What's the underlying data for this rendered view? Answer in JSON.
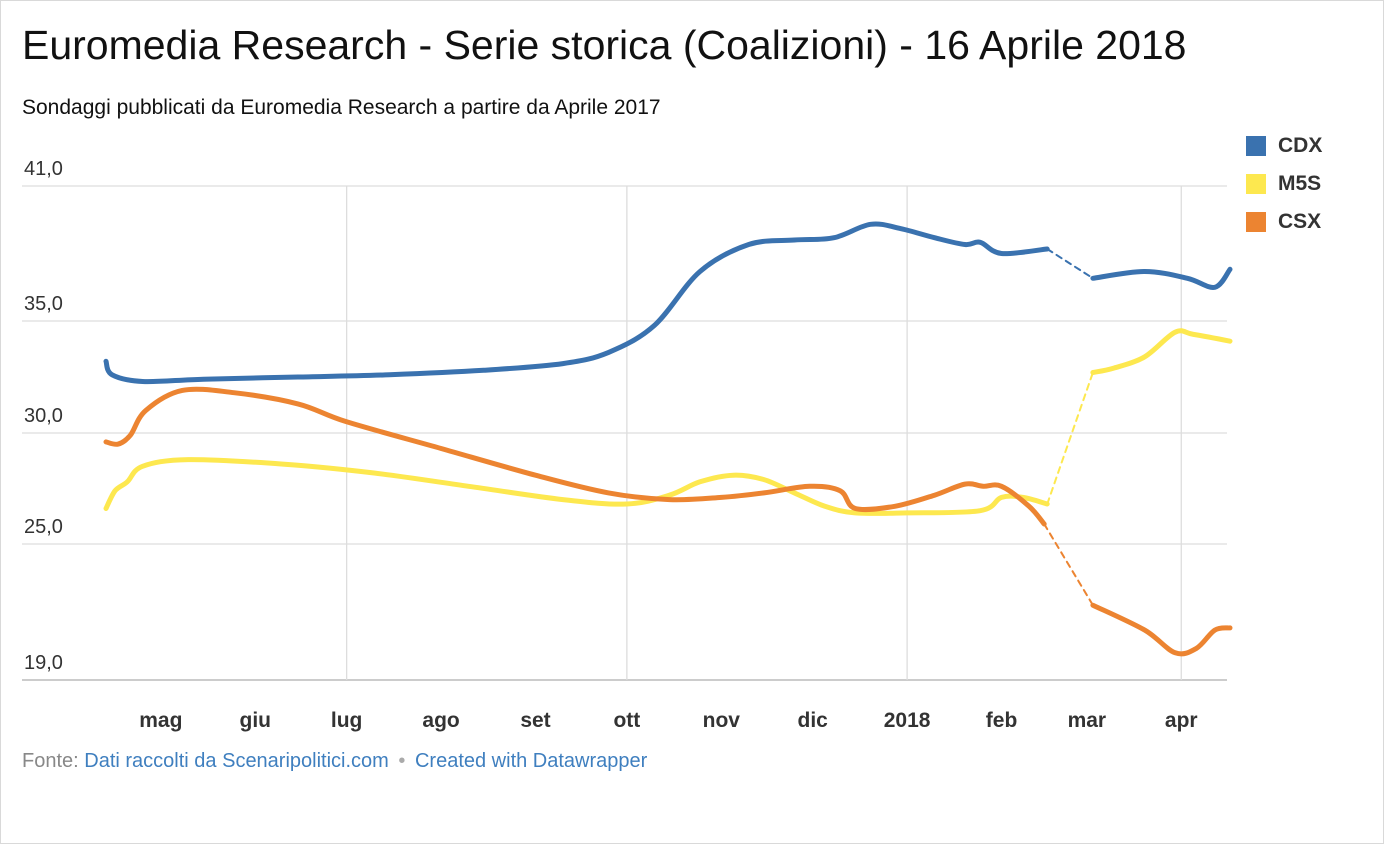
{
  "title": "Euromedia Research - Serie storica (Coalizioni) - 16 Aprile 2018",
  "subtitle": "Sondaggi pubblicati da Euromedia Research a partire da Aprile 2017",
  "footer": {
    "source_label": "Fonte:",
    "source_link": "Dati raccolti da Scenaripolitici.com",
    "separator": "•",
    "credit_link": "Created with Datawrapper"
  },
  "chart_data": {
    "type": "line",
    "title": "Euromedia Research - Serie storica (Coalizioni) - 16 Aprile 2018",
    "xlabel": "",
    "ylabel": "",
    "x_range": [
      "2017-04-13",
      "2018-04-17"
    ],
    "ylim": [
      19,
      41
    ],
    "y_ticks": [
      19,
      25,
      30,
      35,
      41
    ],
    "y_tick_labels": [
      "19,0",
      "25,0",
      "30,0",
      "35,0",
      "41,0"
    ],
    "x_ticks": [
      {
        "date": "2017-05-01",
        "label": "mag",
        "gridline": false
      },
      {
        "date": "2017-06-01",
        "label": "giu",
        "gridline": false
      },
      {
        "date": "2017-07-01",
        "label": "lug",
        "gridline": true
      },
      {
        "date": "2017-08-01",
        "label": "ago",
        "gridline": false
      },
      {
        "date": "2017-09-01",
        "label": "set",
        "gridline": false
      },
      {
        "date": "2017-10-01",
        "label": "ott",
        "gridline": true
      },
      {
        "date": "2017-11-01",
        "label": "nov",
        "gridline": false
      },
      {
        "date": "2017-12-01",
        "label": "dic",
        "gridline": false
      },
      {
        "date": "2018-01-01",
        "label": "2018",
        "gridline": true,
        "bold": true
      },
      {
        "date": "2018-02-01",
        "label": "feb",
        "gridline": false
      },
      {
        "date": "2018-03-01",
        "label": "mar",
        "gridline": false
      },
      {
        "date": "2018-04-01",
        "label": "apr",
        "gridline": true
      }
    ],
    "grid": true,
    "legend_position": "top-right",
    "series": [
      {
        "name": "CDX",
        "color": "#3a72af",
        "points": [
          [
            "2017-04-13",
            33.2
          ],
          [
            "2017-04-15",
            32.6
          ],
          [
            "2017-04-25",
            32.3
          ],
          [
            "2017-05-15",
            32.4
          ],
          [
            "2017-06-15",
            32.5
          ],
          [
            "2017-07-15",
            32.6
          ],
          [
            "2017-08-15",
            32.8
          ],
          [
            "2017-09-10",
            33.1
          ],
          [
            "2017-09-25",
            33.6
          ],
          [
            "2017-10-10",
            34.8
          ],
          [
            "2017-10-25",
            37.2
          ],
          [
            "2017-11-10",
            38.4
          ],
          [
            "2017-11-25",
            38.6
          ],
          [
            "2017-12-08",
            38.7
          ],
          [
            "2017-12-20",
            39.3
          ],
          [
            "2017-12-30",
            39.1
          ],
          [
            "2018-01-10",
            38.7
          ],
          [
            "2018-01-20",
            38.4
          ],
          [
            "2018-01-25",
            38.5
          ],
          [
            "2018-02-01",
            38.0
          ],
          [
            "2018-02-16",
            38.2
          ],
          [
            "2018-03-03",
            36.9
          ],
          [
            "2018-03-20",
            37.2
          ],
          [
            "2018-04-03",
            36.9
          ],
          [
            "2018-04-12",
            36.5
          ],
          [
            "2018-04-17",
            37.3
          ]
        ],
        "dashed_segments": [
          [
            "2018-02-16",
            "2018-03-03"
          ]
        ]
      },
      {
        "name": "M5S",
        "color": "#fde84f",
        "points": [
          [
            "2017-04-13",
            26.6
          ],
          [
            "2017-04-16",
            27.4
          ],
          [
            "2017-04-20",
            27.8
          ],
          [
            "2017-04-25",
            28.5
          ],
          [
            "2017-05-10",
            28.8
          ],
          [
            "2017-06-10",
            28.6
          ],
          [
            "2017-07-10",
            28.2
          ],
          [
            "2017-08-10",
            27.6
          ],
          [
            "2017-09-10",
            27.0
          ],
          [
            "2017-10-01",
            26.8
          ],
          [
            "2017-10-15",
            27.2
          ],
          [
            "2017-10-25",
            27.8
          ],
          [
            "2017-11-05",
            28.1
          ],
          [
            "2017-11-15",
            27.9
          ],
          [
            "2017-11-25",
            27.3
          ],
          [
            "2017-12-05",
            26.7
          ],
          [
            "2017-12-15",
            26.4
          ],
          [
            "2018-01-01",
            26.4
          ],
          [
            "2018-01-25",
            26.5
          ],
          [
            "2018-02-01",
            27.1
          ],
          [
            "2018-02-08",
            27.1
          ],
          [
            "2018-02-16",
            26.8
          ],
          [
            "2018-03-03",
            32.7
          ],
          [
            "2018-03-10",
            32.9
          ],
          [
            "2018-03-20",
            33.4
          ],
          [
            "2018-03-30",
            34.5
          ],
          [
            "2018-04-05",
            34.4
          ],
          [
            "2018-04-17",
            34.1
          ]
        ],
        "dashed_segments": [
          [
            "2018-02-16",
            "2018-03-03"
          ]
        ]
      },
      {
        "name": "CSX",
        "color": "#ec8431",
        "points": [
          [
            "2017-04-13",
            29.6
          ],
          [
            "2017-04-17",
            29.5
          ],
          [
            "2017-04-21",
            29.9
          ],
          [
            "2017-04-26",
            31.0
          ],
          [
            "2017-05-08",
            31.9
          ],
          [
            "2017-05-25",
            31.8
          ],
          [
            "2017-06-15",
            31.3
          ],
          [
            "2017-07-01",
            30.5
          ],
          [
            "2017-08-01",
            29.3
          ],
          [
            "2017-09-01",
            28.1
          ],
          [
            "2017-09-25",
            27.3
          ],
          [
            "2017-10-15",
            27.0
          ],
          [
            "2017-11-01",
            27.1
          ],
          [
            "2017-11-15",
            27.3
          ],
          [
            "2017-11-30",
            27.6
          ],
          [
            "2017-12-10",
            27.4
          ],
          [
            "2017-12-15",
            26.6
          ],
          [
            "2017-12-28",
            26.7
          ],
          [
            "2018-01-10",
            27.2
          ],
          [
            "2018-01-20",
            27.7
          ],
          [
            "2018-01-26",
            27.6
          ],
          [
            "2018-02-01",
            27.6
          ],
          [
            "2018-02-10",
            26.7
          ],
          [
            "2018-02-15",
            25.9
          ],
          [
            "2018-03-03",
            22.3
          ],
          [
            "2018-03-20",
            21.2
          ],
          [
            "2018-03-30",
            20.2
          ],
          [
            "2018-04-06",
            20.4
          ],
          [
            "2018-04-12",
            21.2
          ],
          [
            "2018-04-17",
            21.3
          ]
        ],
        "dashed_segments": [
          [
            "2018-02-15",
            "2018-03-03"
          ]
        ]
      }
    ]
  }
}
